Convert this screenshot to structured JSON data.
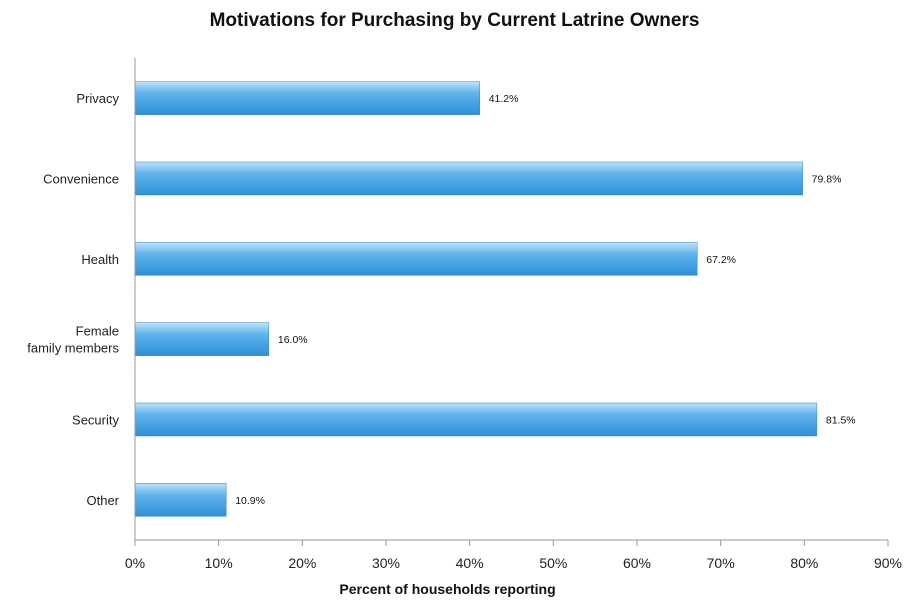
{
  "chart_data": {
    "type": "bar",
    "orientation": "horizontal",
    "title": "Motivations for Purchasing by Current Latrine Owners",
    "xlabel": "Percent of households reporting",
    "ylabel": "",
    "categories": [
      "Privacy",
      "Convenience",
      "Health",
      "Female family members",
      "Security",
      "Other"
    ],
    "category_lines": [
      [
        "Privacy"
      ],
      [
        "Convenience"
      ],
      [
        "Health"
      ],
      [
        "Female",
        "family members"
      ],
      [
        "Security"
      ],
      [
        "Other"
      ]
    ],
    "values": [
      41.2,
      79.8,
      67.2,
      16.0,
      81.5,
      10.9
    ],
    "value_labels": [
      "41.2%",
      "79.8%",
      "67.2%",
      "16.0%",
      "81.5%",
      "10.9%"
    ],
    "xlim": [
      0,
      90
    ],
    "x_ticks": [
      0,
      10,
      20,
      30,
      40,
      50,
      60,
      70,
      80,
      90
    ],
    "x_tick_labels": [
      "0%",
      "10%",
      "20%",
      "30%",
      "40%",
      "50%",
      "60%",
      "70%",
      "80%",
      "90%"
    ],
    "grid": false,
    "legend": "none",
    "bar_color": "#3d9de0"
  }
}
